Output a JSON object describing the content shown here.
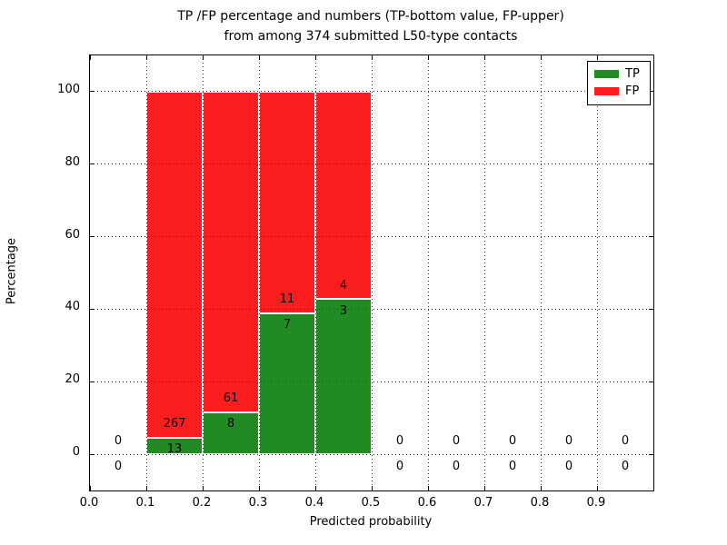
{
  "title": {
    "line1": "TP /FP percentage and numbers (TP-bottom value, FP-upper)",
    "line2": "from among 374 submitted L50-type contacts"
  },
  "axes": {
    "xlabel": "Predicted probability",
    "ylabel": "Percentage",
    "xlim": [
      0,
      1.0
    ],
    "ylim": [
      -10,
      110
    ],
    "x_ticks": [
      {
        "v": 0.0,
        "label": "0.0"
      },
      {
        "v": 0.1,
        "label": "0.1"
      },
      {
        "v": 0.2,
        "label": "0.2"
      },
      {
        "v": 0.3,
        "label": "0.3"
      },
      {
        "v": 0.4,
        "label": "0.4"
      },
      {
        "v": 0.5,
        "label": "0.5"
      },
      {
        "v": 0.6,
        "label": "0.6"
      },
      {
        "v": 0.7,
        "label": "0.7"
      },
      {
        "v": 0.8,
        "label": "0.8"
      },
      {
        "v": 0.9,
        "label": "0.9"
      }
    ],
    "y_ticks": [
      {
        "v": 0,
        "label": "0"
      },
      {
        "v": 20,
        "label": "20"
      },
      {
        "v": 40,
        "label": "40"
      },
      {
        "v": 60,
        "label": "60"
      },
      {
        "v": 80,
        "label": "80"
      },
      {
        "v": 100,
        "label": "100"
      }
    ],
    "grid": "dotted, drawn above bars"
  },
  "legend": {
    "position": "upper right",
    "items": [
      {
        "label": "TP",
        "color": "#228a22"
      },
      {
        "label": "FP",
        "color": "#fc1e1e"
      }
    ]
  },
  "chart_data": {
    "type": "bar",
    "stacked": true,
    "total_contacts": 374,
    "colors": {
      "tp": "#228a22",
      "fp": "#fc1e1e",
      "bar_edge": "#ffffff"
    },
    "note": "Each bar is normalized to 100%; TP% = tp/(tp+fp) within bin; FP label above TP-bar top, TP label below it",
    "bins": [
      {
        "x0": 0.0,
        "x1": 0.1,
        "tp": 0,
        "fp": 0,
        "tp_pct": 0,
        "fp_pct": 0
      },
      {
        "x0": 0.1,
        "x1": 0.2,
        "tp": 13,
        "fp": 267,
        "tp_pct": 4.64,
        "fp_pct": 95.36
      },
      {
        "x0": 0.2,
        "x1": 0.3,
        "tp": 8,
        "fp": 61,
        "tp_pct": 11.59,
        "fp_pct": 88.41
      },
      {
        "x0": 0.3,
        "x1": 0.4,
        "tp": 7,
        "fp": 11,
        "tp_pct": 38.89,
        "fp_pct": 61.11
      },
      {
        "x0": 0.4,
        "x1": 0.5,
        "tp": 3,
        "fp": 4,
        "tp_pct": 42.86,
        "fp_pct": 57.14
      },
      {
        "x0": 0.5,
        "x1": 0.6,
        "tp": 0,
        "fp": 0,
        "tp_pct": 0,
        "fp_pct": 0
      },
      {
        "x0": 0.6,
        "x1": 0.7,
        "tp": 0,
        "fp": 0,
        "tp_pct": 0,
        "fp_pct": 0
      },
      {
        "x0": 0.7,
        "x1": 0.8,
        "tp": 0,
        "fp": 0,
        "tp_pct": 0,
        "fp_pct": 0
      },
      {
        "x0": 0.8,
        "x1": 0.9,
        "tp": 0,
        "fp": 0,
        "tp_pct": 0,
        "fp_pct": 0
      },
      {
        "x0": 0.9,
        "x1": 1.0,
        "tp": 0,
        "fp": 0,
        "tp_pct": 0,
        "fp_pct": 0
      }
    ]
  }
}
